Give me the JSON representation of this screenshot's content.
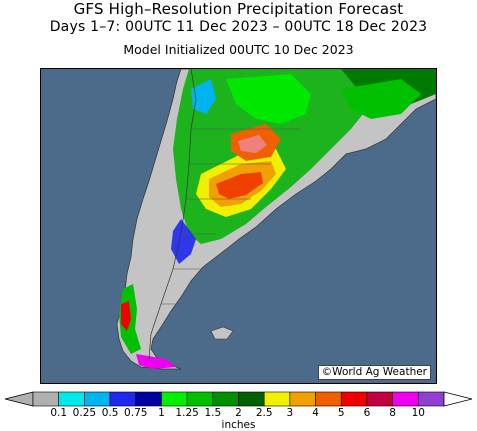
{
  "title": "GFS High–Resolution Precipitation Forecast",
  "subtitle": "Days 1–7: 00UTC 11 Dec 2023 – 00UTC 18 Dec 2023",
  "init_line": "Model Initialized 00UTC 10 Dec 2023",
  "credit": "©World Ag Weather",
  "legend": {
    "unit": "inches",
    "labels": [
      "0.1",
      "0.25",
      "0.5",
      "0.75",
      "1",
      "1.25",
      "1.5",
      "2",
      "2.5",
      "3",
      "4",
      "5",
      "6",
      "8",
      "10"
    ],
    "colors": [
      "#b0b0b0",
      "#00e8e8",
      "#00b4f0",
      "#1e28f0",
      "#0000a0",
      "#00f000",
      "#00c000",
      "#009000",
      "#006000",
      "#f0f000",
      "#f0a000",
      "#f06000",
      "#f00000",
      "#c00040",
      "#f000f0",
      "#9040d0"
    ]
  },
  "colors": {
    "ocean": "#4c6b8a",
    "land_dry": "#c4c4c4"
  }
}
